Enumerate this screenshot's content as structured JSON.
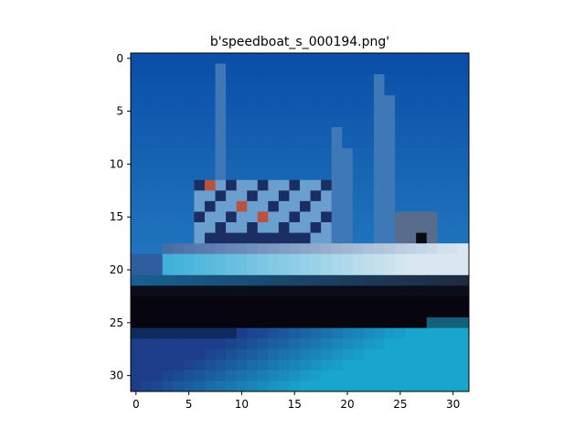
{
  "chart_data": {
    "type": "heatmap",
    "title": "b'speedboat_s_000194.png'",
    "xlabel": "",
    "ylabel": "",
    "xlim": [
      -0.5,
      31.5
    ],
    "ylim": [
      31.5,
      -0.5
    ],
    "grid": false,
    "x_ticks": [
      {
        "value": 0,
        "label": "0"
      },
      {
        "value": 5,
        "label": "5"
      },
      {
        "value": 10,
        "label": "10"
      },
      {
        "value": 15,
        "label": "15"
      },
      {
        "value": 20,
        "label": "20"
      },
      {
        "value": 25,
        "label": "25"
      },
      {
        "value": 30,
        "label": "30"
      }
    ],
    "y_ticks": [
      {
        "value": 0,
        "label": "0"
      },
      {
        "value": 5,
        "label": "5"
      },
      {
        "value": 10,
        "label": "10"
      },
      {
        "value": 15,
        "label": "15"
      },
      {
        "value": 20,
        "label": "20"
      },
      {
        "value": 25,
        "label": "25"
      },
      {
        "value": 30,
        "label": "30"
      }
    ],
    "image_rows": 32,
    "image_cols": 32,
    "palette": {
      "sky_top": "#0b4fa8",
      "sky_bottom": "#1f74bd",
      "mast": "#3f78b6",
      "cabin_dark": "#1b2e63",
      "cabin_light": "#6a9fd0",
      "cabin_red": "#b9533f",
      "hull_white": "#d9e8f0",
      "hull_cyan": "#2aa9d6",
      "hull_black": "#070610",
      "water_dark": "#1d3d8a",
      "water_cyan": "#18a6cc"
    }
  }
}
